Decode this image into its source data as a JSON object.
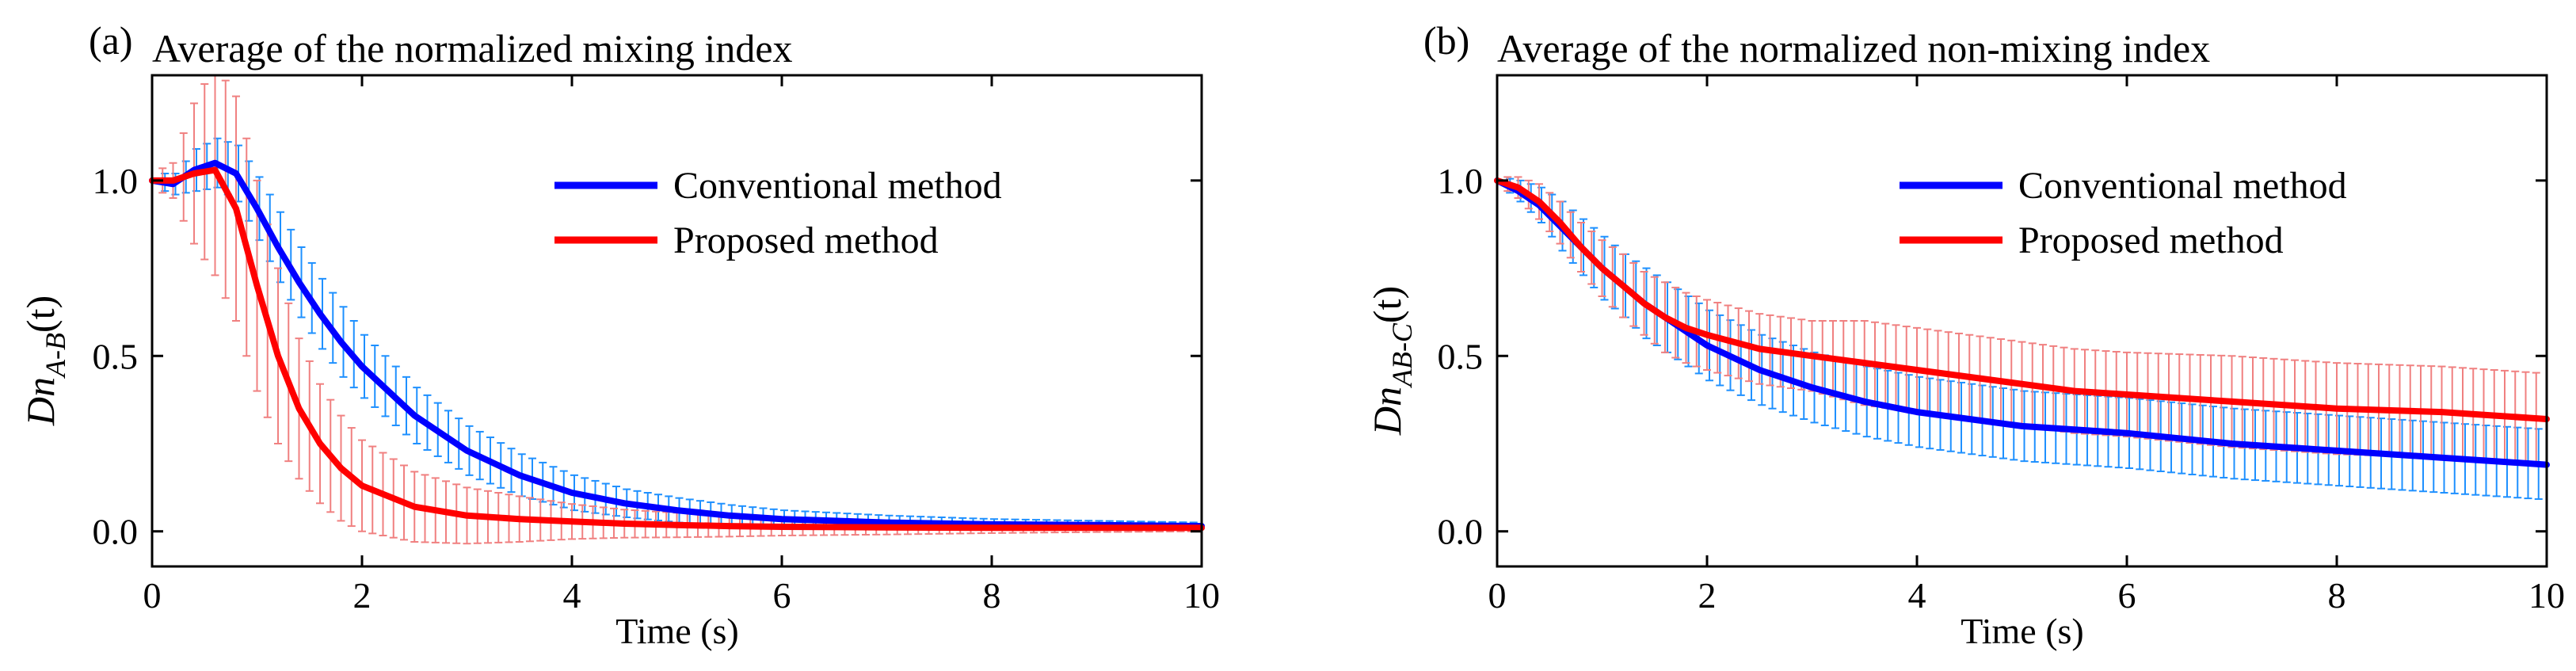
{
  "colors": {
    "conventional_line": "#0000ff",
    "proposed_line": "#ff0000",
    "conventional_err": "#1e90ff",
    "proposed_err": "#f08080"
  },
  "chart_data": [
    {
      "type": "line",
      "panel_label": "(a)",
      "title": "Average of the normalized mixing index",
      "xlabel": "Time (s)",
      "ylabel": {
        "base": "Dn",
        "sub": "A-B",
        "arg": "(t)"
      },
      "xlim": [
        0,
        10
      ],
      "ylim": [
        -0.1,
        1.3
      ],
      "xticks": [
        0,
        2,
        4,
        6,
        8,
        10
      ],
      "xtick_labels": [
        "0",
        "2",
        "4",
        "6",
        "8",
        "10"
      ],
      "yticks": [
        0.0,
        0.5,
        1.0
      ],
      "ytick_labels": [
        "0.0",
        "0.5",
        "1.0"
      ],
      "legend": [
        "Conventional method",
        "Proposed method"
      ],
      "x": [
        0,
        0.2,
        0.4,
        0.6,
        0.8,
        1.0,
        1.2,
        1.4,
        1.6,
        1.8,
        2.0,
        2.5,
        3.0,
        3.5,
        4.0,
        4.5,
        5.0,
        5.5,
        6.0,
        7.0,
        8.0,
        9.0,
        10.0
      ],
      "series": [
        {
          "name": "Conventional method",
          "values": [
            1.0,
            0.99,
            1.03,
            1.05,
            1.02,
            0.92,
            0.81,
            0.71,
            0.62,
            0.54,
            0.47,
            0.33,
            0.23,
            0.16,
            0.11,
            0.08,
            0.06,
            0.045,
            0.035,
            0.025,
            0.02,
            0.018,
            0.015
          ],
          "error": [
            0.02,
            0.03,
            0.06,
            0.07,
            0.08,
            0.09,
            0.1,
            0.1,
            0.1,
            0.1,
            0.09,
            0.08,
            0.07,
            0.06,
            0.05,
            0.04,
            0.035,
            0.03,
            0.025,
            0.02,
            0.015,
            0.012,
            0.01
          ]
        },
        {
          "name": "Proposed method",
          "values": [
            1.0,
            1.0,
            1.02,
            1.03,
            0.92,
            0.7,
            0.5,
            0.35,
            0.25,
            0.18,
            0.13,
            0.07,
            0.045,
            0.035,
            0.028,
            0.022,
            0.018,
            0.015,
            0.013,
            0.011,
            0.01,
            0.01,
            0.01
          ],
          "error": [
            0.02,
            0.05,
            0.2,
            0.3,
            0.32,
            0.3,
            0.25,
            0.2,
            0.17,
            0.15,
            0.13,
            0.1,
            0.08,
            0.065,
            0.05,
            0.04,
            0.035,
            0.03,
            0.025,
            0.02,
            0.015,
            0.012,
            0.01
          ]
        }
      ]
    },
    {
      "type": "line",
      "panel_label": "(b)",
      "title": "Average of the normalized non-mixing index",
      "xlabel": "Time (s)",
      "ylabel": {
        "base": "Dn",
        "sub": "AB-C",
        "arg": "(t)"
      },
      "xlim": [
        0,
        10
      ],
      "ylim": [
        -0.1,
        1.3
      ],
      "xticks": [
        0,
        2,
        4,
        6,
        8,
        10
      ],
      "xtick_labels": [
        "0",
        "2",
        "4",
        "6",
        "8",
        "10"
      ],
      "yticks": [
        0.0,
        0.5,
        1.0
      ],
      "ytick_labels": [
        "0.0",
        "0.5",
        "1.0"
      ],
      "legend": [
        "Conventional method",
        "Proposed method"
      ],
      "x": [
        0,
        0.2,
        0.4,
        0.6,
        0.8,
        1.0,
        1.2,
        1.4,
        1.6,
        1.8,
        2.0,
        2.5,
        3.0,
        3.5,
        4.0,
        4.5,
        5.0,
        5.5,
        6.0,
        7.0,
        8.0,
        9.0,
        10.0
      ],
      "series": [
        {
          "name": "Conventional method",
          "values": [
            1.0,
            0.97,
            0.93,
            0.87,
            0.81,
            0.75,
            0.7,
            0.65,
            0.61,
            0.57,
            0.53,
            0.46,
            0.41,
            0.37,
            0.34,
            0.32,
            0.3,
            0.29,
            0.28,
            0.25,
            0.23,
            0.21,
            0.19
          ],
          "error": [
            0.01,
            0.03,
            0.05,
            0.07,
            0.08,
            0.09,
            0.09,
            0.1,
            0.1,
            0.1,
            0.1,
            0.1,
            0.1,
            0.1,
            0.1,
            0.1,
            0.1,
            0.1,
            0.1,
            0.1,
            0.1,
            0.1,
            0.1
          ]
        },
        {
          "name": "Proposed method",
          "values": [
            1.0,
            0.98,
            0.94,
            0.88,
            0.81,
            0.75,
            0.7,
            0.65,
            0.61,
            0.58,
            0.56,
            0.52,
            0.5,
            0.48,
            0.46,
            0.44,
            0.42,
            0.4,
            0.39,
            0.37,
            0.35,
            0.34,
            0.32
          ],
          "error": [
            0.01,
            0.03,
            0.05,
            0.06,
            0.07,
            0.08,
            0.09,
            0.09,
            0.1,
            0.1,
            0.1,
            0.1,
            0.1,
            0.12,
            0.12,
            0.12,
            0.12,
            0.12,
            0.12,
            0.13,
            0.13,
            0.13,
            0.13
          ]
        }
      ]
    }
  ]
}
